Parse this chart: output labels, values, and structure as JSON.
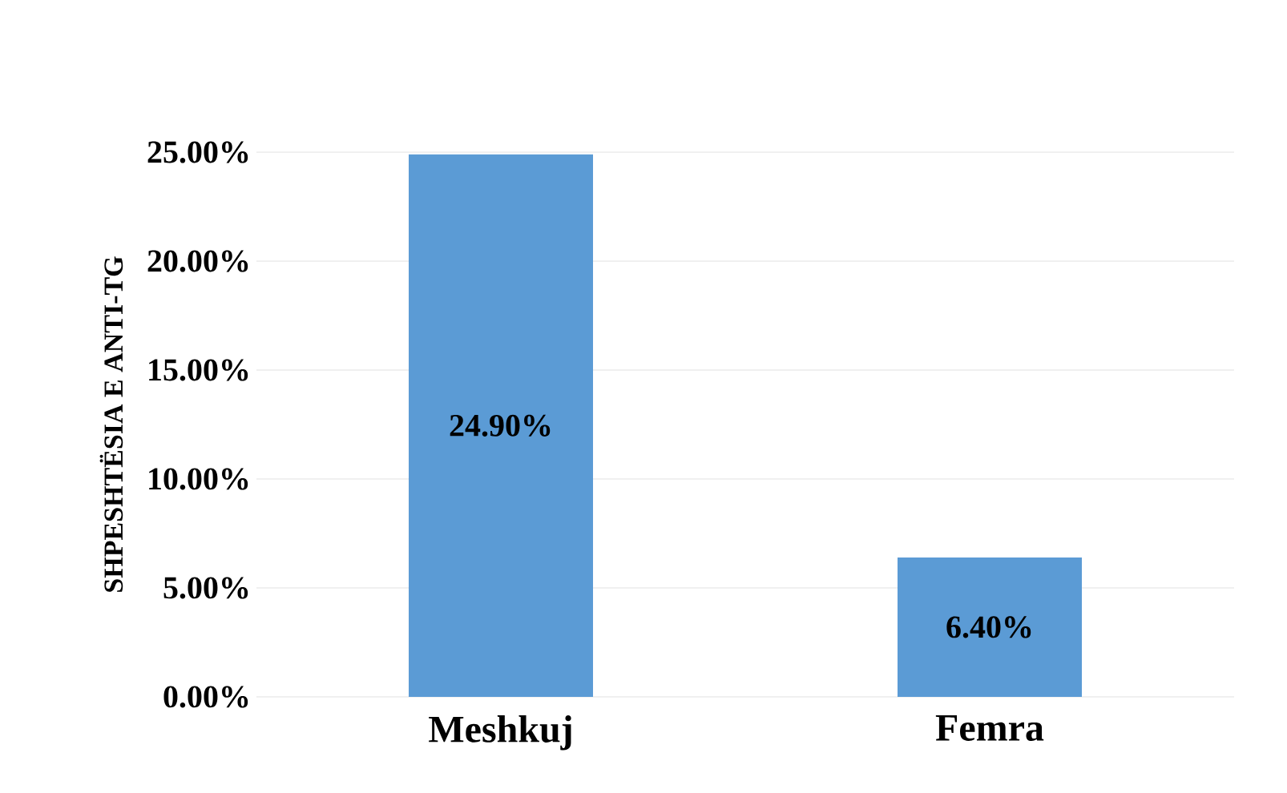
{
  "chart_data": {
    "type": "bar",
    "ylabel": "SHPESHTËSIA E ANTI-TG",
    "categories": [
      "Meshkuj",
      "Femra"
    ],
    "values": [
      24.9,
      6.4
    ],
    "value_labels": [
      "24.90%",
      "6.40%"
    ],
    "color": "#5b9bd5",
    "ylim": [
      0,
      25
    ],
    "yticks": [
      {
        "value": 0,
        "label": "0.00%"
      },
      {
        "value": 5,
        "label": "5.00%"
      },
      {
        "value": 10,
        "label": "10.00%"
      },
      {
        "value": 15,
        "label": "15.00%"
      },
      {
        "value": 20,
        "label": "20.00%"
      },
      {
        "value": 25,
        "label": "25.00%"
      }
    ],
    "grid": "y"
  }
}
